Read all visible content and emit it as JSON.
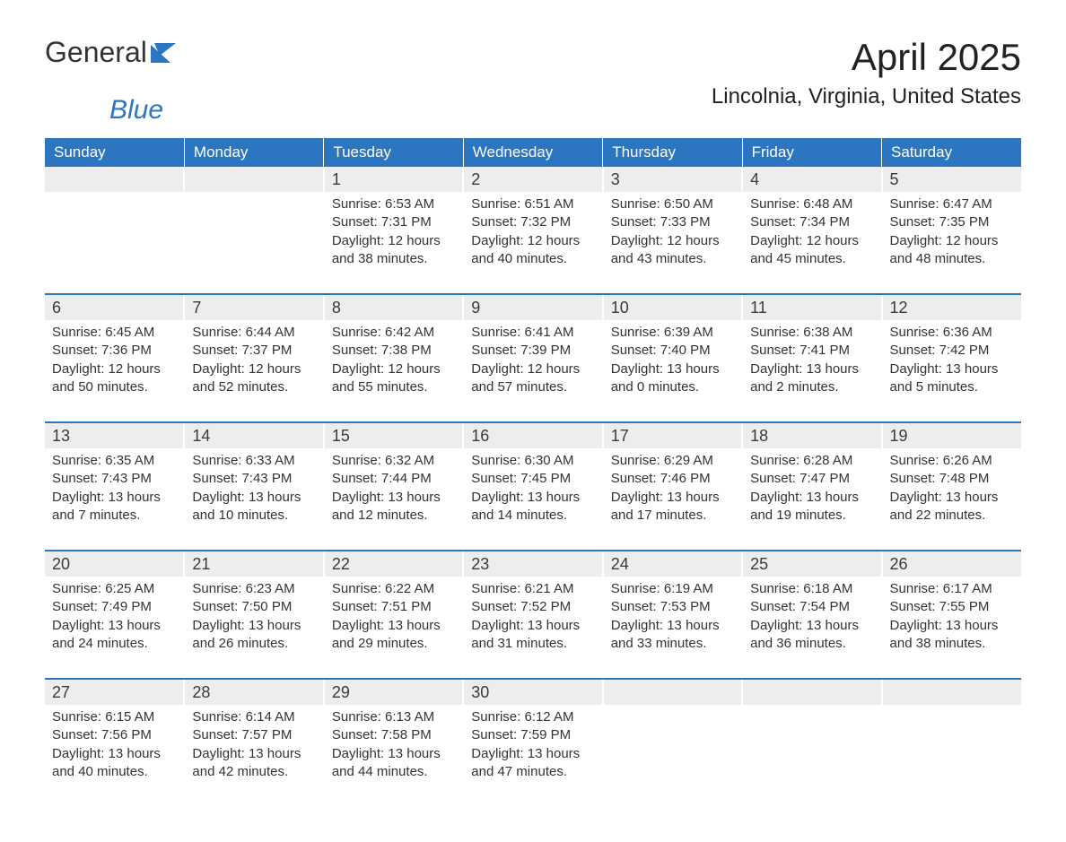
{
  "logo": {
    "text1": "General",
    "text2": "Blue"
  },
  "title": "April 2025",
  "location": "Lincolnia, Virginia, United States",
  "day_headers": [
    "Sunday",
    "Monday",
    "Tuesday",
    "Wednesday",
    "Thursday",
    "Friday",
    "Saturday"
  ],
  "colors": {
    "header_bg": "#2b75c1",
    "header_text": "#ffffff",
    "daynum_bg": "#ededed",
    "body_text": "#333333",
    "page_bg": "#ffffff"
  },
  "weeks": [
    [
      {
        "day": "",
        "sunrise": "",
        "sunset": "",
        "daylight": ""
      },
      {
        "day": "",
        "sunrise": "",
        "sunset": "",
        "daylight": ""
      },
      {
        "day": "1",
        "sunrise": "Sunrise: 6:53 AM",
        "sunset": "Sunset: 7:31 PM",
        "daylight": "Daylight: 12 hours and 38 minutes."
      },
      {
        "day": "2",
        "sunrise": "Sunrise: 6:51 AM",
        "sunset": "Sunset: 7:32 PM",
        "daylight": "Daylight: 12 hours and 40 minutes."
      },
      {
        "day": "3",
        "sunrise": "Sunrise: 6:50 AM",
        "sunset": "Sunset: 7:33 PM",
        "daylight": "Daylight: 12 hours and 43 minutes."
      },
      {
        "day": "4",
        "sunrise": "Sunrise: 6:48 AM",
        "sunset": "Sunset: 7:34 PM",
        "daylight": "Daylight: 12 hours and 45 minutes."
      },
      {
        "day": "5",
        "sunrise": "Sunrise: 6:47 AM",
        "sunset": "Sunset: 7:35 PM",
        "daylight": "Daylight: 12 hours and 48 minutes."
      }
    ],
    [
      {
        "day": "6",
        "sunrise": "Sunrise: 6:45 AM",
        "sunset": "Sunset: 7:36 PM",
        "daylight": "Daylight: 12 hours and 50 minutes."
      },
      {
        "day": "7",
        "sunrise": "Sunrise: 6:44 AM",
        "sunset": "Sunset: 7:37 PM",
        "daylight": "Daylight: 12 hours and 52 minutes."
      },
      {
        "day": "8",
        "sunrise": "Sunrise: 6:42 AM",
        "sunset": "Sunset: 7:38 PM",
        "daylight": "Daylight: 12 hours and 55 minutes."
      },
      {
        "day": "9",
        "sunrise": "Sunrise: 6:41 AM",
        "sunset": "Sunset: 7:39 PM",
        "daylight": "Daylight: 12 hours and 57 minutes."
      },
      {
        "day": "10",
        "sunrise": "Sunrise: 6:39 AM",
        "sunset": "Sunset: 7:40 PM",
        "daylight": "Daylight: 13 hours and 0 minutes."
      },
      {
        "day": "11",
        "sunrise": "Sunrise: 6:38 AM",
        "sunset": "Sunset: 7:41 PM",
        "daylight": "Daylight: 13 hours and 2 minutes."
      },
      {
        "day": "12",
        "sunrise": "Sunrise: 6:36 AM",
        "sunset": "Sunset: 7:42 PM",
        "daylight": "Daylight: 13 hours and 5 minutes."
      }
    ],
    [
      {
        "day": "13",
        "sunrise": "Sunrise: 6:35 AM",
        "sunset": "Sunset: 7:43 PM",
        "daylight": "Daylight: 13 hours and 7 minutes."
      },
      {
        "day": "14",
        "sunrise": "Sunrise: 6:33 AM",
        "sunset": "Sunset: 7:43 PM",
        "daylight": "Daylight: 13 hours and 10 minutes."
      },
      {
        "day": "15",
        "sunrise": "Sunrise: 6:32 AM",
        "sunset": "Sunset: 7:44 PM",
        "daylight": "Daylight: 13 hours and 12 minutes."
      },
      {
        "day": "16",
        "sunrise": "Sunrise: 6:30 AM",
        "sunset": "Sunset: 7:45 PM",
        "daylight": "Daylight: 13 hours and 14 minutes."
      },
      {
        "day": "17",
        "sunrise": "Sunrise: 6:29 AM",
        "sunset": "Sunset: 7:46 PM",
        "daylight": "Daylight: 13 hours and 17 minutes."
      },
      {
        "day": "18",
        "sunrise": "Sunrise: 6:28 AM",
        "sunset": "Sunset: 7:47 PM",
        "daylight": "Daylight: 13 hours and 19 minutes."
      },
      {
        "day": "19",
        "sunrise": "Sunrise: 6:26 AM",
        "sunset": "Sunset: 7:48 PM",
        "daylight": "Daylight: 13 hours and 22 minutes."
      }
    ],
    [
      {
        "day": "20",
        "sunrise": "Sunrise: 6:25 AM",
        "sunset": "Sunset: 7:49 PM",
        "daylight": "Daylight: 13 hours and 24 minutes."
      },
      {
        "day": "21",
        "sunrise": "Sunrise: 6:23 AM",
        "sunset": "Sunset: 7:50 PM",
        "daylight": "Daylight: 13 hours and 26 minutes."
      },
      {
        "day": "22",
        "sunrise": "Sunrise: 6:22 AM",
        "sunset": "Sunset: 7:51 PM",
        "daylight": "Daylight: 13 hours and 29 minutes."
      },
      {
        "day": "23",
        "sunrise": "Sunrise: 6:21 AM",
        "sunset": "Sunset: 7:52 PM",
        "daylight": "Daylight: 13 hours and 31 minutes."
      },
      {
        "day": "24",
        "sunrise": "Sunrise: 6:19 AM",
        "sunset": "Sunset: 7:53 PM",
        "daylight": "Daylight: 13 hours and 33 minutes."
      },
      {
        "day": "25",
        "sunrise": "Sunrise: 6:18 AM",
        "sunset": "Sunset: 7:54 PM",
        "daylight": "Daylight: 13 hours and 36 minutes."
      },
      {
        "day": "26",
        "sunrise": "Sunrise: 6:17 AM",
        "sunset": "Sunset: 7:55 PM",
        "daylight": "Daylight: 13 hours and 38 minutes."
      }
    ],
    [
      {
        "day": "27",
        "sunrise": "Sunrise: 6:15 AM",
        "sunset": "Sunset: 7:56 PM",
        "daylight": "Daylight: 13 hours and 40 minutes."
      },
      {
        "day": "28",
        "sunrise": "Sunrise: 6:14 AM",
        "sunset": "Sunset: 7:57 PM",
        "daylight": "Daylight: 13 hours and 42 minutes."
      },
      {
        "day": "29",
        "sunrise": "Sunrise: 6:13 AM",
        "sunset": "Sunset: 7:58 PM",
        "daylight": "Daylight: 13 hours and 44 minutes."
      },
      {
        "day": "30",
        "sunrise": "Sunrise: 6:12 AM",
        "sunset": "Sunset: 7:59 PM",
        "daylight": "Daylight: 13 hours and 47 minutes."
      },
      {
        "day": "",
        "sunrise": "",
        "sunset": "",
        "daylight": ""
      },
      {
        "day": "",
        "sunrise": "",
        "sunset": "",
        "daylight": ""
      },
      {
        "day": "",
        "sunrise": "",
        "sunset": "",
        "daylight": ""
      }
    ]
  ]
}
